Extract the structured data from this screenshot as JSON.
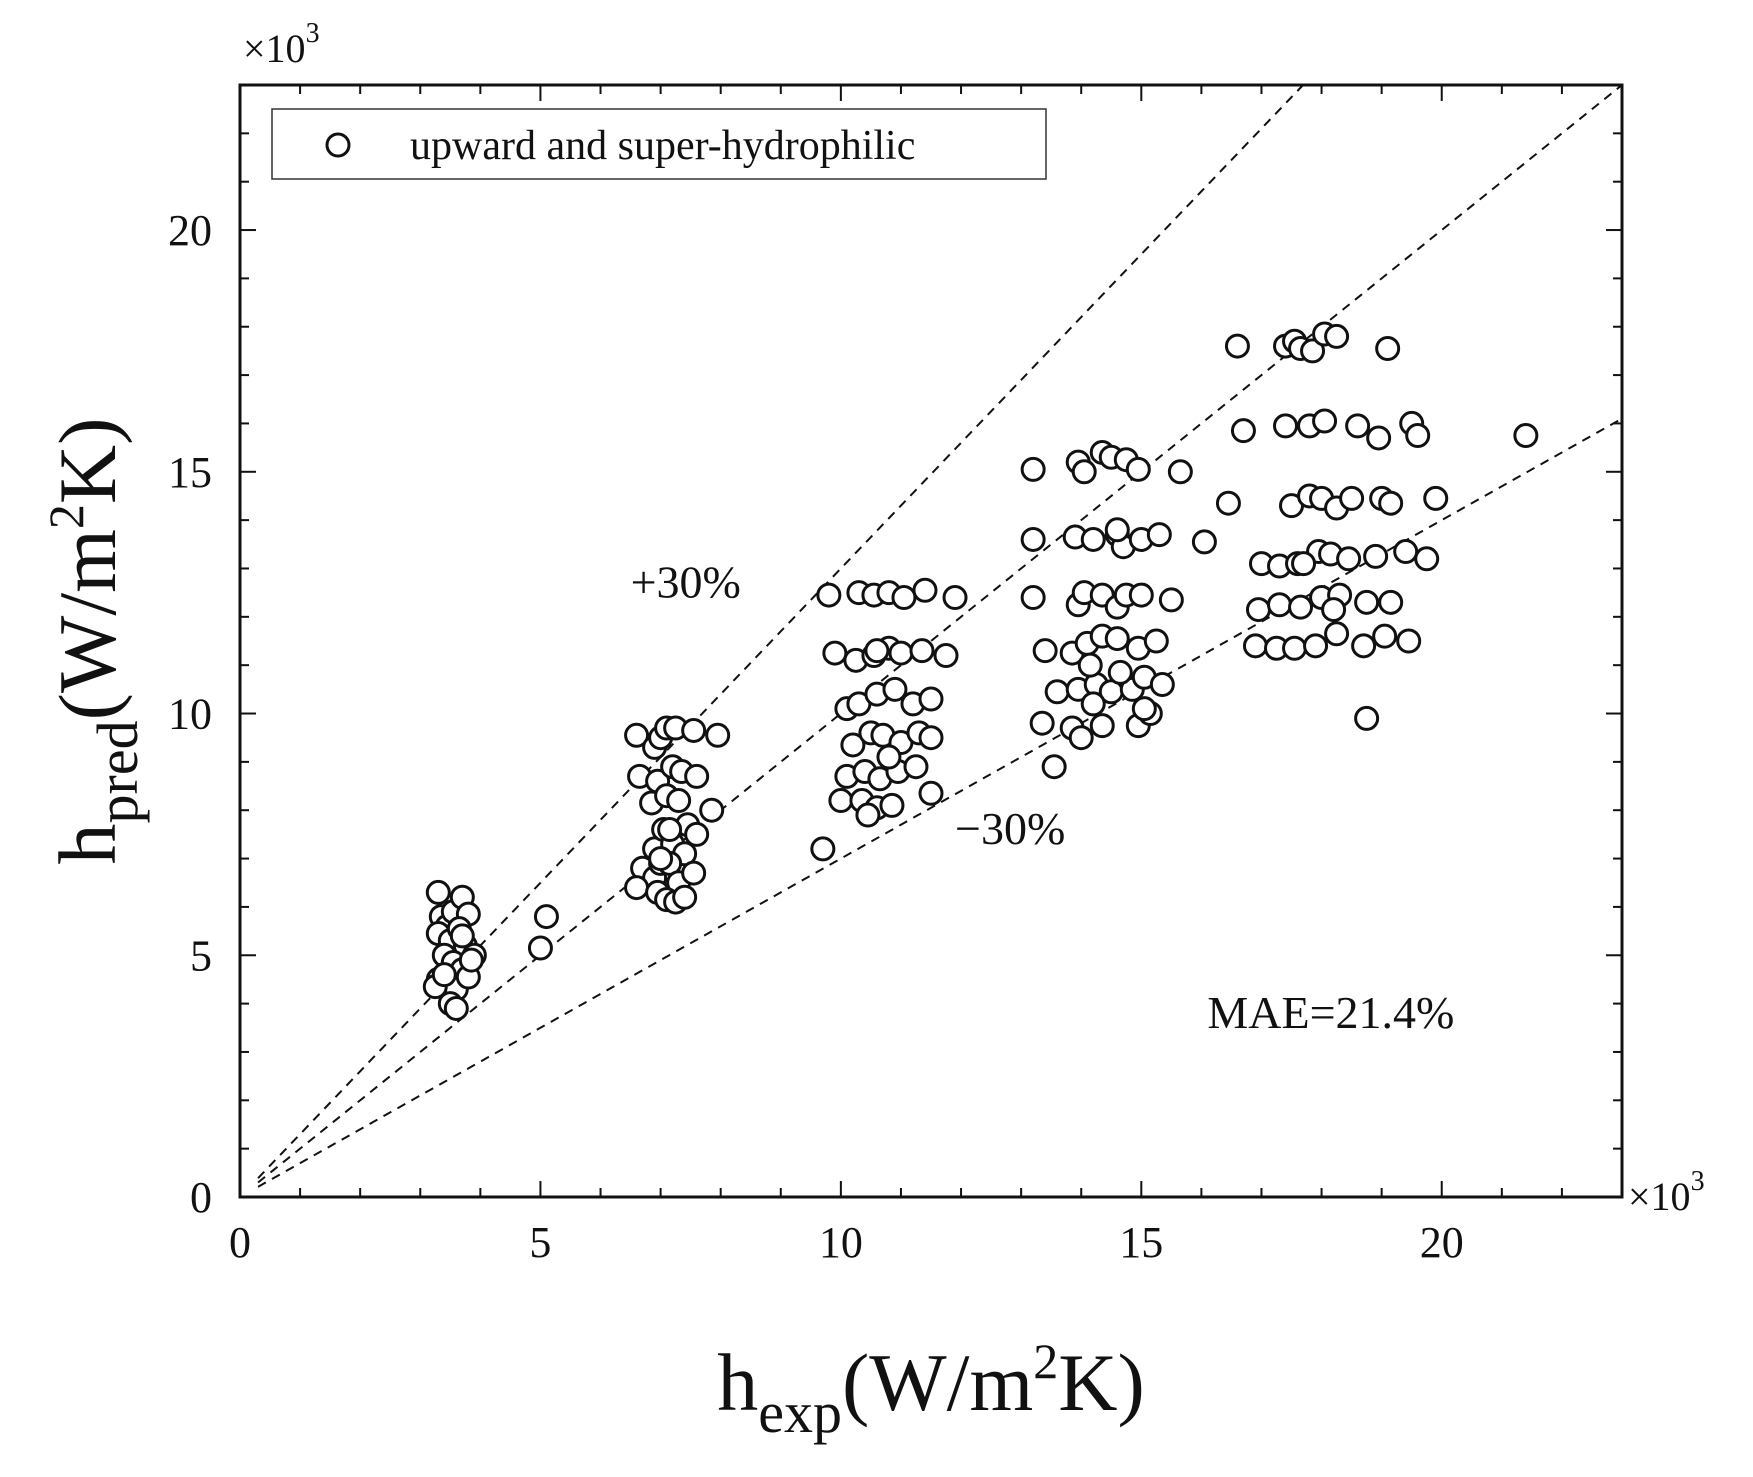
{
  "chart_data": {
    "type": "scatter",
    "multiplier_label": "×10",
    "multiplier_exponent": "3",
    "xlim": [
      0,
      23
    ],
    "ylim": [
      0,
      23
    ],
    "x_ticks": [
      0,
      5,
      10,
      15,
      20
    ],
    "y_ticks": [
      0,
      5,
      10,
      15,
      20
    ],
    "x_tick_labels": [
      "0",
      "5",
      "10",
      "15",
      "20"
    ],
    "y_tick_labels": [
      "0",
      "5",
      "10",
      "15",
      "20"
    ],
    "xlabel": {
      "main": "h",
      "sub": "exp",
      "unit_pre": "(W/m",
      "sup": "2",
      "unit_post": "K)"
    },
    "ylabel": {
      "main": "h",
      "sub": "pred",
      "unit_pre": "(W/m",
      "sup": "2",
      "unit_post": "K)"
    },
    "legend": {
      "label": "upward and super-hydrophilic",
      "position": "top-left"
    },
    "reference_lines": [
      {
        "name": "plus-30",
        "slope": 1.3,
        "x_range": [
          0.3,
          17.7
        ],
        "label": "+30%",
        "label_at": [
          6.5,
          12.4
        ]
      },
      {
        "name": "parity",
        "slope": 1.0,
        "x_range": [
          0.3,
          23.0
        ],
        "label": "",
        "label_at": null
      },
      {
        "name": "minus-30",
        "slope": 0.7,
        "x_range": [
          0.3,
          23.0
        ],
        "label": "−30%",
        "label_at": [
          11.9,
          7.3
        ]
      }
    ],
    "annotation": "MAE=21.4%",
    "annotation_at": [
      16.1,
      3.5
    ],
    "series": [
      {
        "name": "upward and super-hydrophilic",
        "marker": "open-circle",
        "points": [
          [
            3.3,
            6.3
          ],
          [
            3.35,
            5.8
          ],
          [
            3.45,
            5.6
          ],
          [
            3.55,
            5.9
          ],
          [
            3.7,
            6.2
          ],
          [
            3.8,
            5.85
          ],
          [
            3.3,
            5.45
          ],
          [
            3.5,
            5.3
          ],
          [
            3.65,
            5.55
          ],
          [
            3.75,
            5.2
          ],
          [
            3.9,
            5.0
          ],
          [
            3.4,
            5.0
          ],
          [
            3.55,
            4.85
          ],
          [
            3.7,
            4.7
          ],
          [
            3.3,
            4.5
          ],
          [
            3.45,
            4.4
          ],
          [
            3.6,
            4.3
          ],
          [
            3.8,
            4.55
          ],
          [
            3.25,
            4.35
          ],
          [
            3.5,
            4.0
          ],
          [
            3.6,
            3.9
          ],
          [
            3.7,
            5.4
          ],
          [
            3.85,
            4.9
          ],
          [
            3.4,
            4.6
          ],
          [
            5.0,
            5.15
          ],
          [
            5.1,
            5.8
          ],
          [
            6.6,
            9.55
          ],
          [
            6.9,
            9.3
          ],
          [
            7.0,
            9.5
          ],
          [
            7.1,
            9.7
          ],
          [
            7.25,
            9.7
          ],
          [
            7.55,
            9.65
          ],
          [
            7.95,
            9.55
          ],
          [
            6.65,
            8.7
          ],
          [
            6.95,
            8.6
          ],
          [
            7.2,
            8.9
          ],
          [
            7.35,
            8.8
          ],
          [
            7.6,
            8.7
          ],
          [
            7.85,
            8.0
          ],
          [
            6.85,
            8.15
          ],
          [
            7.1,
            8.3
          ],
          [
            7.3,
            8.2
          ],
          [
            7.45,
            7.7
          ],
          [
            7.6,
            7.5
          ],
          [
            6.9,
            7.2
          ],
          [
            7.05,
            7.6
          ],
          [
            7.2,
            7.3
          ],
          [
            7.4,
            7.1
          ],
          [
            6.7,
            6.8
          ],
          [
            6.9,
            6.6
          ],
          [
            7.0,
            6.9
          ],
          [
            7.15,
            6.9
          ],
          [
            7.3,
            6.5
          ],
          [
            7.55,
            6.7
          ],
          [
            6.6,
            6.4
          ],
          [
            6.95,
            6.3
          ],
          [
            7.1,
            6.15
          ],
          [
            7.25,
            6.1
          ],
          [
            7.4,
            6.2
          ],
          [
            7.0,
            7.0
          ],
          [
            7.15,
            7.6
          ],
          [
            9.8,
            12.45
          ],
          [
            10.3,
            12.5
          ],
          [
            10.55,
            12.45
          ],
          [
            10.8,
            12.5
          ],
          [
            11.05,
            12.4
          ],
          [
            11.4,
            12.55
          ],
          [
            11.9,
            12.4
          ],
          [
            9.9,
            11.25
          ],
          [
            10.25,
            11.1
          ],
          [
            10.55,
            11.2
          ],
          [
            10.8,
            11.35
          ],
          [
            11.0,
            11.25
          ],
          [
            11.35,
            11.3
          ],
          [
            11.75,
            11.2
          ],
          [
            10.1,
            10.1
          ],
          [
            10.3,
            10.2
          ],
          [
            10.6,
            10.4
          ],
          [
            10.9,
            10.5
          ],
          [
            11.2,
            10.2
          ],
          [
            11.5,
            10.3
          ],
          [
            10.2,
            9.35
          ],
          [
            10.5,
            9.6
          ],
          [
            10.7,
            9.55
          ],
          [
            11.0,
            9.4
          ],
          [
            11.3,
            9.6
          ],
          [
            11.5,
            9.5
          ],
          [
            10.1,
            8.7
          ],
          [
            10.4,
            8.8
          ],
          [
            10.65,
            8.65
          ],
          [
            10.95,
            8.8
          ],
          [
            11.25,
            8.9
          ],
          [
            10.0,
            8.2
          ],
          [
            10.35,
            8.2
          ],
          [
            10.6,
            8.05
          ],
          [
            10.85,
            8.1
          ],
          [
            11.5,
            8.35
          ],
          [
            10.45,
            7.9
          ],
          [
            9.7,
            7.2
          ],
          [
            10.6,
            11.3
          ],
          [
            10.8,
            9.1
          ],
          [
            13.2,
            15.05
          ],
          [
            13.95,
            15.2
          ],
          [
            14.05,
            15.0
          ],
          [
            14.35,
            15.4
          ],
          [
            14.5,
            15.3
          ],
          [
            14.75,
            15.25
          ],
          [
            14.95,
            15.05
          ],
          [
            15.65,
            15.0
          ],
          [
            13.2,
            13.6
          ],
          [
            13.9,
            13.65
          ],
          [
            14.2,
            13.6
          ],
          [
            14.6,
            13.7
          ],
          [
            14.7,
            13.45
          ],
          [
            15.0,
            13.6
          ],
          [
            15.3,
            13.7
          ],
          [
            16.05,
            13.55
          ],
          [
            13.2,
            12.4
          ],
          [
            13.95,
            12.25
          ],
          [
            14.05,
            12.5
          ],
          [
            14.35,
            12.45
          ],
          [
            14.6,
            12.2
          ],
          [
            14.75,
            12.45
          ],
          [
            15.0,
            12.45
          ],
          [
            15.5,
            12.35
          ],
          [
            13.4,
            11.3
          ],
          [
            13.85,
            11.25
          ],
          [
            14.1,
            11.45
          ],
          [
            14.35,
            11.6
          ],
          [
            14.6,
            11.55
          ],
          [
            14.95,
            11.35
          ],
          [
            15.25,
            11.5
          ],
          [
            13.6,
            10.45
          ],
          [
            13.95,
            10.5
          ],
          [
            14.25,
            10.6
          ],
          [
            14.5,
            10.45
          ],
          [
            14.85,
            10.5
          ],
          [
            15.05,
            10.75
          ],
          [
            15.35,
            10.6
          ],
          [
            13.35,
            9.8
          ],
          [
            13.85,
            9.7
          ],
          [
            14.0,
            9.5
          ],
          [
            14.35,
            9.75
          ],
          [
            14.95,
            9.75
          ],
          [
            15.15,
            10.0
          ],
          [
            13.55,
            8.9
          ],
          [
            14.2,
            10.2
          ],
          [
            14.65,
            10.85
          ],
          [
            15.05,
            10.1
          ],
          [
            14.6,
            13.8
          ],
          [
            14.15,
            11.0
          ],
          [
            16.6,
            17.6
          ],
          [
            17.4,
            17.6
          ],
          [
            17.55,
            17.7
          ],
          [
            17.65,
            17.55
          ],
          [
            17.85,
            17.5
          ],
          [
            18.05,
            17.85
          ],
          [
            18.25,
            17.8
          ],
          [
            19.1,
            17.55
          ],
          [
            16.7,
            15.85
          ],
          [
            17.4,
            15.95
          ],
          [
            17.8,
            15.95
          ],
          [
            18.05,
            16.05
          ],
          [
            18.6,
            15.95
          ],
          [
            18.95,
            15.7
          ],
          [
            19.5,
            16.0
          ],
          [
            19.6,
            15.75
          ],
          [
            21.4,
            15.75
          ],
          [
            16.45,
            14.35
          ],
          [
            17.5,
            14.3
          ],
          [
            17.8,
            14.5
          ],
          [
            18.0,
            14.45
          ],
          [
            18.25,
            14.25
          ],
          [
            18.5,
            14.45
          ],
          [
            19.0,
            14.45
          ],
          [
            19.15,
            14.35
          ],
          [
            19.9,
            14.45
          ],
          [
            17.0,
            13.1
          ],
          [
            17.3,
            13.05
          ],
          [
            17.6,
            13.1
          ],
          [
            17.95,
            13.35
          ],
          [
            18.15,
            13.3
          ],
          [
            18.45,
            13.2
          ],
          [
            18.9,
            13.25
          ],
          [
            19.4,
            13.35
          ],
          [
            19.75,
            13.2
          ],
          [
            16.95,
            12.15
          ],
          [
            17.3,
            12.25
          ],
          [
            17.65,
            12.2
          ],
          [
            18.0,
            12.4
          ],
          [
            18.3,
            12.45
          ],
          [
            18.75,
            12.3
          ],
          [
            19.15,
            12.3
          ],
          [
            16.9,
            11.4
          ],
          [
            17.25,
            11.35
          ],
          [
            17.55,
            11.35
          ],
          [
            17.9,
            11.4
          ],
          [
            18.25,
            11.65
          ],
          [
            18.7,
            11.4
          ],
          [
            19.05,
            11.6
          ],
          [
            19.45,
            11.5
          ],
          [
            18.75,
            9.9
          ],
          [
            18.2,
            12.15
          ],
          [
            17.7,
            13.1
          ]
        ]
      }
    ]
  }
}
